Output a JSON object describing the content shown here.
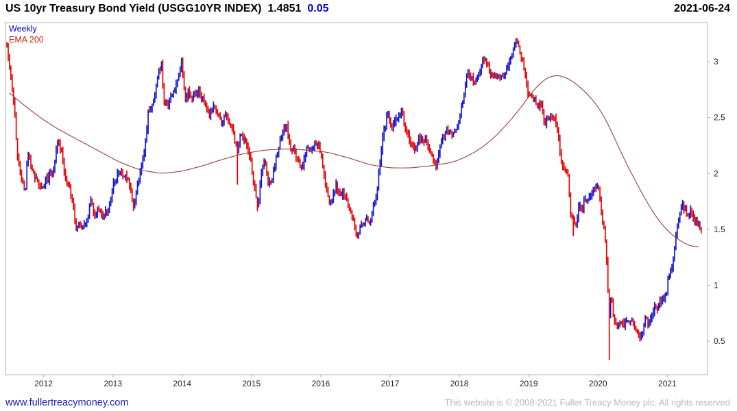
{
  "header": {
    "title": "US 10yr Treasury Bond Yield (USGG10YR INDEX)",
    "last_price": "1.4851",
    "change": "0.05",
    "date": "2021-06-24"
  },
  "legend": {
    "timeframe": "Weekly",
    "overlay": "EMA 200"
  },
  "footer": {
    "site_link": "www.fullertreacymoney.com",
    "copyright": "This website is © 2008-2021 Fuller Treacy Money plc. All rights reserved"
  },
  "colors": {
    "up_bar": "#1414cc",
    "down_bar": "#e80000",
    "ema_line": "#9e3a3a",
    "frame": "#b0b0b0",
    "axis_text": "#222222",
    "change_text": "#0000cd",
    "legend_weekly": "#0000cc",
    "legend_ema": "#cc2200",
    "link": "#1a1acd",
    "copyright": "#b6b6b6"
  },
  "chart_data": {
    "type": "candlestick",
    "title": "US 10yr Treasury Bond Yield (USGG10YR INDEX)",
    "timeframe": "Weekly",
    "overlay": "EMA 200",
    "date": "2021-06-24",
    "last_close": 1.4851,
    "change": 0.05,
    "grid": false,
    "legend_position": "top-left-inside",
    "x_axis": {
      "range": [
        2011.45,
        2021.58
      ],
      "ticks": [
        2012,
        2013,
        2014,
        2015,
        2016,
        2017,
        2018,
        2019,
        2020,
        2021
      ]
    },
    "y_axis": {
      "range": [
        0.2,
        3.35
      ],
      "ticks": [
        0.5,
        1,
        1.5,
        2,
        2.5,
        3
      ],
      "side": "right",
      "unit": "percent yield"
    },
    "spikes": [
      {
        "t": 2020.17,
        "low": 0.33
      },
      {
        "t": 2014.8,
        "low": 1.9
      },
      {
        "t": 2019.65,
        "low": 1.44
      }
    ],
    "series": [
      {
        "name": "USGG10YR weekly close anchors [year, yield %]",
        "points": [
          [
            2011.47,
            3.16
          ],
          [
            2011.5,
            3.0
          ],
          [
            2011.54,
            2.8
          ],
          [
            2011.58,
            2.56
          ],
          [
            2011.62,
            2.16
          ],
          [
            2011.66,
            2.0
          ],
          [
            2011.7,
            1.92
          ],
          [
            2011.73,
            1.8
          ],
          [
            2011.77,
            2.2
          ],
          [
            2011.81,
            2.1
          ],
          [
            2011.85,
            2.0
          ],
          [
            2011.9,
            1.96
          ],
          [
            2011.96,
            1.88
          ],
          [
            2012.02,
            1.92
          ],
          [
            2012.08,
            1.98
          ],
          [
            2012.14,
            2.02
          ],
          [
            2012.2,
            2.3
          ],
          [
            2012.26,
            2.18
          ],
          [
            2012.32,
            1.95
          ],
          [
            2012.38,
            1.86
          ],
          [
            2012.43,
            1.7
          ],
          [
            2012.47,
            1.47
          ],
          [
            2012.52,
            1.56
          ],
          [
            2012.57,
            1.5
          ],
          [
            2012.63,
            1.58
          ],
          [
            2012.68,
            1.75
          ],
          [
            2012.73,
            1.62
          ],
          [
            2012.79,
            1.68
          ],
          [
            2012.85,
            1.62
          ],
          [
            2012.91,
            1.66
          ],
          [
            2012.96,
            1.72
          ],
          [
            2013.0,
            1.9
          ],
          [
            2013.06,
            1.98
          ],
          [
            2013.12,
            2.02
          ],
          [
            2013.18,
            1.96
          ],
          [
            2013.24,
            1.9
          ],
          [
            2013.3,
            1.7
          ],
          [
            2013.35,
            1.88
          ],
          [
            2013.41,
            2.1
          ],
          [
            2013.46,
            2.22
          ],
          [
            2013.51,
            2.55
          ],
          [
            2013.56,
            2.6
          ],
          [
            2013.61,
            2.72
          ],
          [
            2013.66,
            2.9
          ],
          [
            2013.7,
            2.98
          ],
          [
            2013.74,
            2.64
          ],
          [
            2013.79,
            2.6
          ],
          [
            2013.84,
            2.7
          ],
          [
            2013.89,
            2.75
          ],
          [
            2013.94,
            2.88
          ],
          [
            2013.99,
            3.0
          ],
          [
            2014.04,
            2.68
          ],
          [
            2014.09,
            2.72
          ],
          [
            2014.14,
            2.66
          ],
          [
            2014.19,
            2.74
          ],
          [
            2014.24,
            2.72
          ],
          [
            2014.29,
            2.66
          ],
          [
            2014.34,
            2.6
          ],
          [
            2014.4,
            2.52
          ],
          [
            2014.46,
            2.6
          ],
          [
            2014.52,
            2.54
          ],
          [
            2014.57,
            2.44
          ],
          [
            2014.62,
            2.55
          ],
          [
            2014.67,
            2.46
          ],
          [
            2014.72,
            2.4
          ],
          [
            2014.76,
            2.3
          ],
          [
            2014.8,
            2.18
          ],
          [
            2014.84,
            2.34
          ],
          [
            2014.89,
            2.3
          ],
          [
            2014.94,
            2.25
          ],
          [
            2014.99,
            2.12
          ],
          [
            2015.04,
            1.88
          ],
          [
            2015.09,
            1.68
          ],
          [
            2015.14,
            2.0
          ],
          [
            2015.19,
            2.12
          ],
          [
            2015.24,
            1.92
          ],
          [
            2015.29,
            1.94
          ],
          [
            2015.34,
            2.1
          ],
          [
            2015.39,
            2.22
          ],
          [
            2015.45,
            2.38
          ],
          [
            2015.5,
            2.44
          ],
          [
            2015.55,
            2.26
          ],
          [
            2015.6,
            2.2
          ],
          [
            2015.65,
            2.16
          ],
          [
            2015.7,
            2.04
          ],
          [
            2015.75,
            2.1
          ],
          [
            2015.8,
            2.26
          ],
          [
            2015.85,
            2.2
          ],
          [
            2015.9,
            2.24
          ],
          [
            2015.96,
            2.28
          ],
          [
            2016.02,
            2.1
          ],
          [
            2016.07,
            1.9
          ],
          [
            2016.12,
            1.72
          ],
          [
            2016.17,
            1.78
          ],
          [
            2016.22,
            1.9
          ],
          [
            2016.27,
            1.78
          ],
          [
            2016.32,
            1.86
          ],
          [
            2016.37,
            1.74
          ],
          [
            2016.42,
            1.68
          ],
          [
            2016.47,
            1.56
          ],
          [
            2016.52,
            1.4
          ],
          [
            2016.56,
            1.54
          ],
          [
            2016.61,
            1.56
          ],
          [
            2016.66,
            1.6
          ],
          [
            2016.71,
            1.56
          ],
          [
            2016.76,
            1.72
          ],
          [
            2016.81,
            1.8
          ],
          [
            2016.85,
            2.08
          ],
          [
            2016.89,
            2.3
          ],
          [
            2016.93,
            2.42
          ],
          [
            2016.97,
            2.56
          ],
          [
            2017.02,
            2.4
          ],
          [
            2017.07,
            2.46
          ],
          [
            2017.12,
            2.5
          ],
          [
            2017.17,
            2.58
          ],
          [
            2017.22,
            2.4
          ],
          [
            2017.27,
            2.32
          ],
          [
            2017.32,
            2.26
          ],
          [
            2017.37,
            2.22
          ],
          [
            2017.42,
            2.32
          ],
          [
            2017.47,
            2.28
          ],
          [
            2017.52,
            2.3
          ],
          [
            2017.57,
            2.22
          ],
          [
            2017.62,
            2.12
          ],
          [
            2017.67,
            2.06
          ],
          [
            2017.72,
            2.26
          ],
          [
            2017.77,
            2.34
          ],
          [
            2017.82,
            2.38
          ],
          [
            2017.87,
            2.34
          ],
          [
            2017.92,
            2.38
          ],
          [
            2017.97,
            2.42
          ],
          [
            2018.02,
            2.55
          ],
          [
            2018.07,
            2.75
          ],
          [
            2018.12,
            2.88
          ],
          [
            2018.17,
            2.86
          ],
          [
            2018.22,
            2.8
          ],
          [
            2018.27,
            2.88
          ],
          [
            2018.32,
            2.98
          ],
          [
            2018.37,
            3.04
          ],
          [
            2018.42,
            2.94
          ],
          [
            2018.47,
            2.86
          ],
          [
            2018.52,
            2.9
          ],
          [
            2018.57,
            2.84
          ],
          [
            2018.62,
            2.86
          ],
          [
            2018.67,
            2.92
          ],
          [
            2018.72,
            3.0
          ],
          [
            2018.77,
            3.08
          ],
          [
            2018.81,
            3.2
          ],
          [
            2018.85,
            3.14
          ],
          [
            2018.89,
            3.06
          ],
          [
            2018.94,
            2.92
          ],
          [
            2018.99,
            2.72
          ],
          [
            2019.04,
            2.68
          ],
          [
            2019.09,
            2.66
          ],
          [
            2019.14,
            2.62
          ],
          [
            2019.19,
            2.6
          ],
          [
            2019.23,
            2.44
          ],
          [
            2019.28,
            2.5
          ],
          [
            2019.33,
            2.54
          ],
          [
            2019.38,
            2.46
          ],
          [
            2019.43,
            2.32
          ],
          [
            2019.48,
            2.08
          ],
          [
            2019.53,
            2.05
          ],
          [
            2019.57,
            1.95
          ],
          [
            2019.61,
            1.62
          ],
          [
            2019.65,
            1.55
          ],
          [
            2019.69,
            1.58
          ],
          [
            2019.73,
            1.72
          ],
          [
            2019.77,
            1.68
          ],
          [
            2019.81,
            1.78
          ],
          [
            2019.86,
            1.76
          ],
          [
            2019.91,
            1.82
          ],
          [
            2019.96,
            1.88
          ],
          [
            2020.01,
            1.86
          ],
          [
            2020.06,
            1.6
          ],
          [
            2020.1,
            1.46
          ],
          [
            2020.13,
            1.15
          ],
          [
            2020.16,
            0.72
          ],
          [
            2020.19,
            0.92
          ],
          [
            2020.23,
            0.7
          ],
          [
            2020.28,
            0.63
          ],
          [
            2020.33,
            0.7
          ],
          [
            2020.38,
            0.64
          ],
          [
            2020.44,
            0.68
          ],
          [
            2020.5,
            0.66
          ],
          [
            2020.55,
            0.6
          ],
          [
            2020.6,
            0.53
          ],
          [
            2020.64,
            0.58
          ],
          [
            2020.68,
            0.7
          ],
          [
            2020.72,
            0.66
          ],
          [
            2020.78,
            0.72
          ],
          [
            2020.82,
            0.84
          ],
          [
            2020.86,
            0.8
          ],
          [
            2020.9,
            0.88
          ],
          [
            2020.94,
            0.86
          ],
          [
            2020.98,
            0.92
          ],
          [
            2021.02,
            1.08
          ],
          [
            2021.06,
            1.14
          ],
          [
            2021.1,
            1.3
          ],
          [
            2021.14,
            1.55
          ],
          [
            2021.18,
            1.64
          ],
          [
            2021.22,
            1.72
          ],
          [
            2021.26,
            1.68
          ],
          [
            2021.3,
            1.6
          ],
          [
            2021.33,
            1.67
          ],
          [
            2021.36,
            1.63
          ],
          [
            2021.4,
            1.58
          ],
          [
            2021.44,
            1.56
          ],
          [
            2021.48,
            1.4851
          ]
        ]
      },
      {
        "name": "EMA 200 anchors [year, yield %]",
        "points": [
          [
            2011.47,
            2.74
          ],
          [
            2011.7,
            2.62
          ],
          [
            2011.95,
            2.5
          ],
          [
            2012.2,
            2.4
          ],
          [
            2012.5,
            2.3
          ],
          [
            2012.8,
            2.2
          ],
          [
            2013.1,
            2.1
          ],
          [
            2013.4,
            2.03
          ],
          [
            2013.7,
            2.0
          ],
          [
            2014.0,
            2.02
          ],
          [
            2014.3,
            2.07
          ],
          [
            2014.6,
            2.13
          ],
          [
            2014.9,
            2.18
          ],
          [
            2015.2,
            2.21
          ],
          [
            2015.5,
            2.22
          ],
          [
            2015.8,
            2.21
          ],
          [
            2016.1,
            2.19
          ],
          [
            2016.4,
            2.14
          ],
          [
            2016.7,
            2.08
          ],
          [
            2017.0,
            2.05
          ],
          [
            2017.3,
            2.05
          ],
          [
            2017.6,
            2.07
          ],
          [
            2017.9,
            2.1
          ],
          [
            2018.1,
            2.15
          ],
          [
            2018.3,
            2.22
          ],
          [
            2018.5,
            2.32
          ],
          [
            2018.7,
            2.45
          ],
          [
            2018.9,
            2.6
          ],
          [
            2019.05,
            2.73
          ],
          [
            2019.2,
            2.83
          ],
          [
            2019.35,
            2.88
          ],
          [
            2019.5,
            2.87
          ],
          [
            2019.65,
            2.82
          ],
          [
            2019.8,
            2.74
          ],
          [
            2019.95,
            2.64
          ],
          [
            2020.1,
            2.5
          ],
          [
            2020.25,
            2.3
          ],
          [
            2020.4,
            2.1
          ],
          [
            2020.55,
            1.92
          ],
          [
            2020.7,
            1.75
          ],
          [
            2020.85,
            1.6
          ],
          [
            2021.0,
            1.49
          ],
          [
            2021.15,
            1.41
          ],
          [
            2021.3,
            1.36
          ],
          [
            2021.4,
            1.34
          ],
          [
            2021.48,
            1.35
          ]
        ]
      }
    ]
  }
}
